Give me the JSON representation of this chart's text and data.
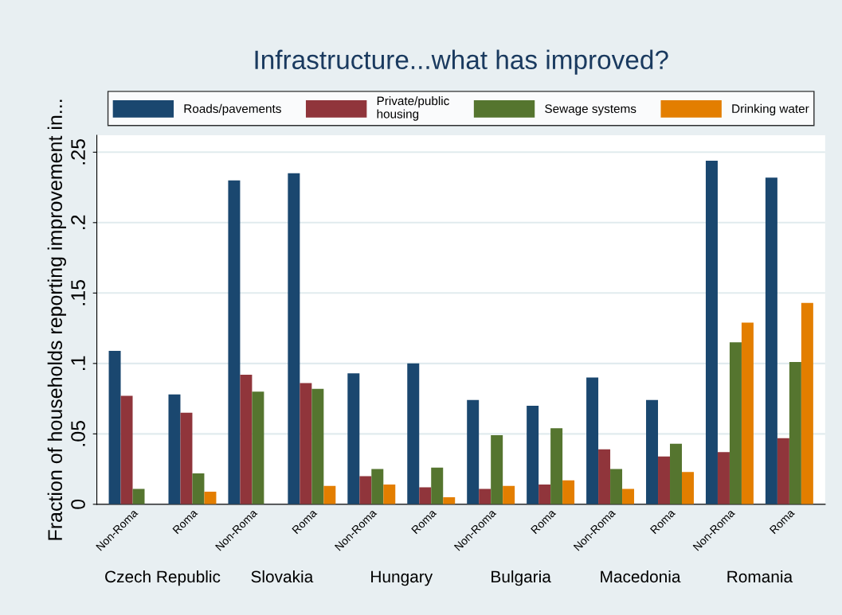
{
  "chart_data": {
    "type": "bar",
    "title": "Infrastructure...what has improved?",
    "ylabel": "Fraction of households reporting improvement in...",
    "categories": [
      "Non-Roma",
      "Roma",
      "Non-Roma",
      "Roma",
      "Non-Roma",
      "Roma",
      "Non-Roma",
      "Roma",
      "Non-Roma",
      "Roma",
      "Non-Roma",
      "Roma"
    ],
    "annotations": [
      "Czech Republic",
      "Slovakia",
      "Hungary",
      "Bulgaria",
      "Macedonia",
      "Romania"
    ],
    "series": [
      {
        "name": "Roads/pavements",
        "color": "#1a476f",
        "values": [
          0.109,
          0.078,
          0.23,
          0.235,
          0.093,
          0.1,
          0.074,
          0.07,
          0.09,
          0.074,
          0.244,
          0.232
        ]
      },
      {
        "name": "Private/public\nhousing",
        "color": "#90353b",
        "values": [
          0.077,
          0.065,
          0.092,
          0.086,
          0.02,
          0.012,
          0.011,
          0.014,
          0.039,
          0.034,
          0.037,
          0.047
        ]
      },
      {
        "name": "Sewage systems",
        "color": "#55752f",
        "values": [
          0.011,
          0.022,
          0.08,
          0.082,
          0.025,
          0.026,
          0.049,
          0.054,
          0.025,
          0.043,
          0.115,
          0.101
        ]
      },
      {
        "name": "Drinking water",
        "color": "#e37e00",
        "values": [
          null,
          0.009,
          null,
          0.013,
          0.014,
          0.005,
          0.013,
          0.017,
          0.011,
          0.023,
          0.129,
          0.143
        ]
      }
    ],
    "ylim": [
      0,
      0.262
    ],
    "yticks": [
      0,
      {
        "value": 0.05,
        "label": ".05"
      },
      {
        "value": 0.1,
        "label": ".1"
      },
      {
        "value": 0.15,
        "label": ".15"
      },
      {
        "value": 0.2,
        "label": ".2"
      },
      {
        "value": 0.25,
        "label": ".25"
      }
    ],
    "grid": "y",
    "legend": "top"
  }
}
